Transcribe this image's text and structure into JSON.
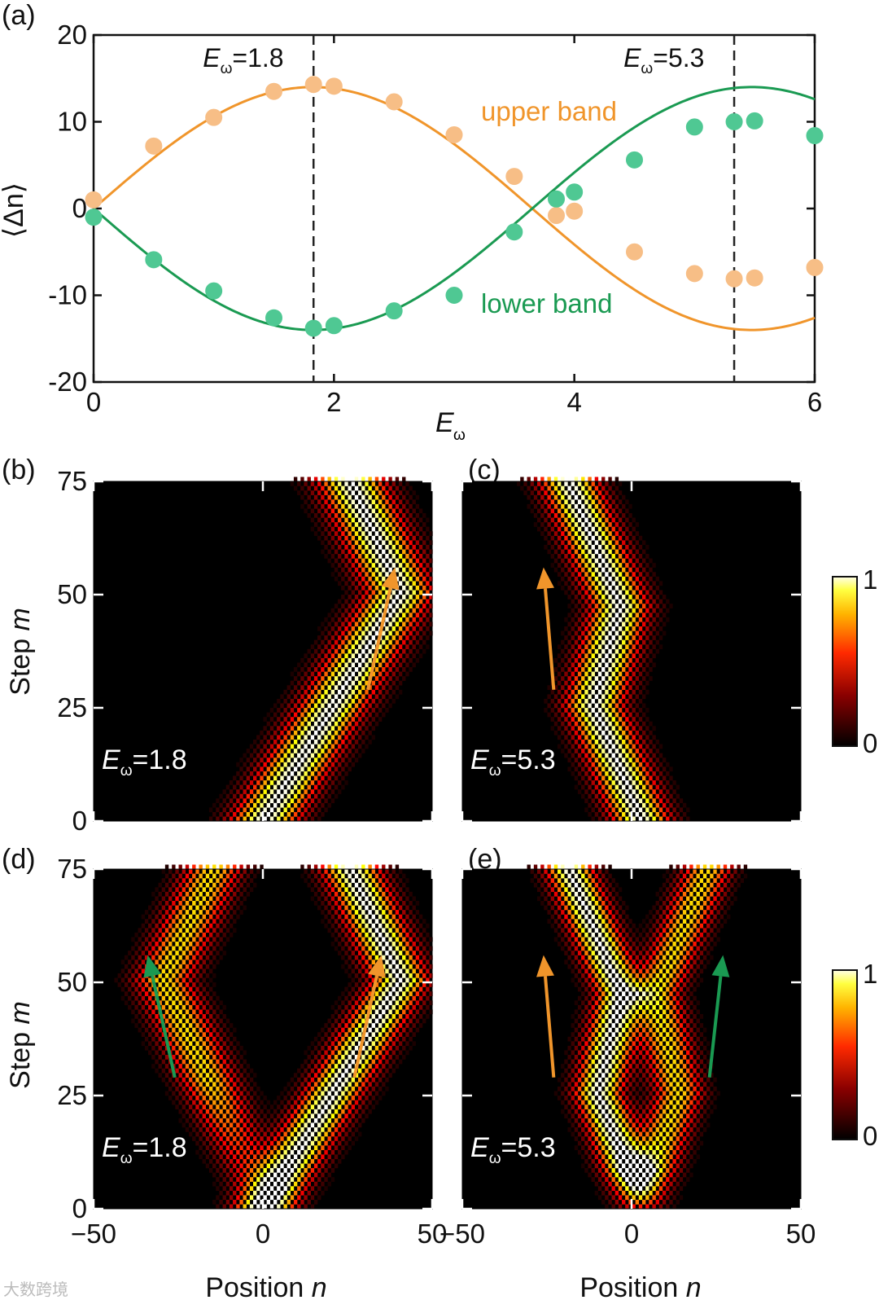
{
  "colors": {
    "upper": "#f0952b",
    "upper_marker": "#f7be86",
    "lower": "#1a9a52",
    "lower_marker": "#4fc893",
    "arrow_orange": "#f0952b",
    "arrow_green": "#1a9a52"
  },
  "chart_data": [
    {
      "type": "scatter",
      "panel": "(a)",
      "xlabel_main": "E",
      "xlabel_sub": "ω",
      "ylabel": "⟨Δn⟩",
      "xlim": [
        0,
        6
      ],
      "ylim": [
        -20,
        20
      ],
      "xticks": [
        0,
        2,
        4,
        6
      ],
      "yticks": [
        20,
        10,
        0,
        -10,
        -20
      ],
      "xtick_labels": [
        "0",
        "2",
        "4",
        "6"
      ],
      "ytick_labels": [
        "20",
        "10",
        "0",
        "-10",
        "-20"
      ],
      "vlines": [
        {
          "x": 1.83,
          "label_main": "E",
          "label_sub": "ω",
          "label_rest": "=1.8"
        },
        {
          "x": 5.33,
          "label_main": "E",
          "label_sub": "ω",
          "label_rest": "=5.3"
        }
      ],
      "series": [
        {
          "name": "upper band",
          "color_key": "upper",
          "points": [
            [
              0,
              1
            ],
            [
              0.5,
              7.2
            ],
            [
              1.0,
              10.5
            ],
            [
              1.5,
              13.5
            ],
            [
              1.83,
              14.3
            ],
            [
              2.0,
              14.1
            ],
            [
              2.5,
              12.3
            ],
            [
              3.0,
              8.5
            ],
            [
              3.5,
              3.7
            ],
            [
              3.85,
              -0.8
            ],
            [
              4.0,
              -0.3
            ],
            [
              4.5,
              -5.0
            ],
            [
              5.0,
              -7.5
            ],
            [
              5.33,
              -8.1
            ],
            [
              5.5,
              -8.0
            ],
            [
              6.0,
              -6.8
            ]
          ],
          "fit": {
            "amplitude": 14.0,
            "period": 7.3
          }
        },
        {
          "name": "lower band",
          "color_key": "lower",
          "points": [
            [
              0,
              -1
            ],
            [
              0.5,
              -5.9
            ],
            [
              1.0,
              -9.5
            ],
            [
              1.5,
              -12.6
            ],
            [
              1.83,
              -13.8
            ],
            [
              2.0,
              -13.5
            ],
            [
              2.5,
              -11.8
            ],
            [
              3.0,
              -10.0
            ],
            [
              3.5,
              -2.7
            ],
            [
              3.85,
              1.1
            ],
            [
              4.0,
              1.9
            ],
            [
              4.5,
              5.6
            ],
            [
              5.0,
              9.4
            ],
            [
              5.33,
              10.0
            ],
            [
              5.5,
              10.1
            ],
            [
              6.0,
              8.4
            ]
          ],
          "fit": {
            "amplitude": -14.0,
            "period": 7.3
          }
        }
      ]
    },
    {
      "type": "heatmap",
      "panel": "(b)",
      "xlim": [
        -50,
        50
      ],
      "ylim": [
        0,
        75
      ],
      "beams": [
        {
          "start": 0,
          "v1": 0.8,
          "turn": 50,
          "v2": -0.6,
          "width": 7,
          "mult": 1
        }
      ],
      "annotation_main": "E",
      "annotation_sub": "ω",
      "annotation_rest": "=1.8",
      "arrows": [
        {
          "color_key": "arrow_orange",
          "from": [
            31,
            29
          ],
          "to": [
            39,
            56
          ]
        }
      ]
    },
    {
      "type": "heatmap",
      "panel": "(c)",
      "xlim": [
        -50,
        50
      ],
      "ylim": [
        0,
        75
      ],
      "beams": [
        {
          "start": 2,
          "v1": -0.55,
          "turn": 25,
          "v2": 0.35,
          "turn2": 47,
          "v3": -0.55,
          "width": 6,
          "mult": 1
        }
      ],
      "annotation_main": "E",
      "annotation_sub": "ω",
      "annotation_rest": "=5.3",
      "arrows": [
        {
          "color_key": "arrow_orange",
          "from": [
            -23,
            29
          ],
          "to": [
            -26,
            56
          ]
        }
      ]
    },
    {
      "type": "heatmap",
      "panel": "(d)",
      "xlim": [
        -50,
        50
      ],
      "ylim": [
        0,
        75
      ],
      "beams": [
        {
          "start": 0,
          "v1": 0.8,
          "turn": 50,
          "v2": -0.6,
          "width": 6,
          "mult": 1,
          "tail_fade": 0.0
        },
        {
          "start": 0,
          "v1": -0.6,
          "turn": 50,
          "v2": 0.6,
          "width": 6,
          "mult": 0.75,
          "fade_below": 28
        }
      ],
      "annotation_main": "E",
      "annotation_sub": "ω",
      "annotation_rest": "=1.8",
      "arrows": [
        {
          "color_key": "arrow_green",
          "from": [
            -26,
            29
          ],
          "to": [
            -34,
            56
          ]
        },
        {
          "color_key": "arrow_orange",
          "from": [
            27,
            29
          ],
          "to": [
            35,
            56
          ]
        }
      ]
    },
    {
      "type": "heatmap",
      "panel": "(e)",
      "xlim": [
        -50,
        50
      ],
      "ylim": [
        0,
        75
      ],
      "beams": [
        {
          "start": 2,
          "v1": -0.5,
          "turn": 25,
          "v2": 0.3,
          "turn2": 47,
          "v3": -0.55,
          "width": 5,
          "mult": 1,
          "fade_below": 8
        },
        {
          "start": 2,
          "v1": 0.45,
          "turn": 25,
          "v2": -0.3,
          "turn2": 47,
          "v3": 0.55,
          "width": 5,
          "mult": 0.75,
          "fade_below": 8
        }
      ],
      "annotation_main": "E",
      "annotation_sub": "ω",
      "annotation_rest": "=5.3",
      "arrows": [
        {
          "color_key": "arrow_orange",
          "from": [
            -23,
            29
          ],
          "to": [
            -26,
            56
          ]
        },
        {
          "color_key": "arrow_green",
          "from": [
            23,
            29
          ],
          "to": [
            27,
            56
          ]
        }
      ]
    }
  ],
  "heatmap_axes": {
    "ylabel_main": "Step ",
    "ylabel_italic": "m",
    "xlabel_main": "Position ",
    "xlabel_italic": "n",
    "yticks": [
      0,
      25,
      50,
      75
    ],
    "ytick_labels": [
      "0",
      "25",
      "50",
      "75"
    ],
    "xticks": [
      -50,
      0,
      50
    ],
    "xtick_labels": [
      "−50",
      "0",
      "50"
    ]
  },
  "colorbar": {
    "min_label": "0",
    "max_label": "1",
    "colormap": "hot"
  },
  "watermark": "大数跨境"
}
